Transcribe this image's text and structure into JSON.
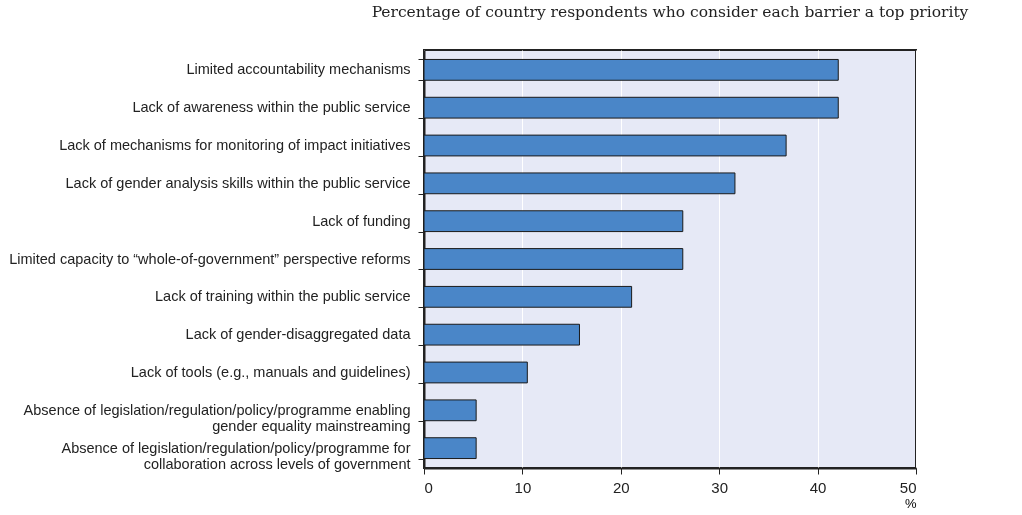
{
  "chart_data": {
    "type": "bar",
    "orientation": "horizontal",
    "subtitle": "Percentage of country respondents who consider each barrier a top priority",
    "categories": [
      "Limited accountability mechanisms",
      "Lack of awareness within the public service",
      "Lack of mechanisms for monitoring of impact initiatives",
      "Lack of gender analysis skills within the public service",
      "Lack of funding",
      "Limited capacity to “whole-of-government” perspective reforms",
      "Lack of training within the public service",
      "Lack of gender-disaggregated data",
      "Lack of tools (e.g., manuals and guidelines)",
      "Absence of legislation/regulation/policy/programme enabling gender equality mainstreaming",
      "Absence of legislation/regulation/policy/programme for collaboration across levels of government"
    ],
    "values": [
      42.1,
      42.1,
      36.8,
      31.6,
      26.3,
      26.3,
      21.1,
      15.8,
      10.5,
      5.3,
      5.3
    ],
    "color": "#4a86c8",
    "xlabel": "%",
    "xlim": [
      0,
      50
    ],
    "xticks": [
      0,
      10,
      20,
      30,
      40,
      50
    ],
    "grid": "x"
  }
}
